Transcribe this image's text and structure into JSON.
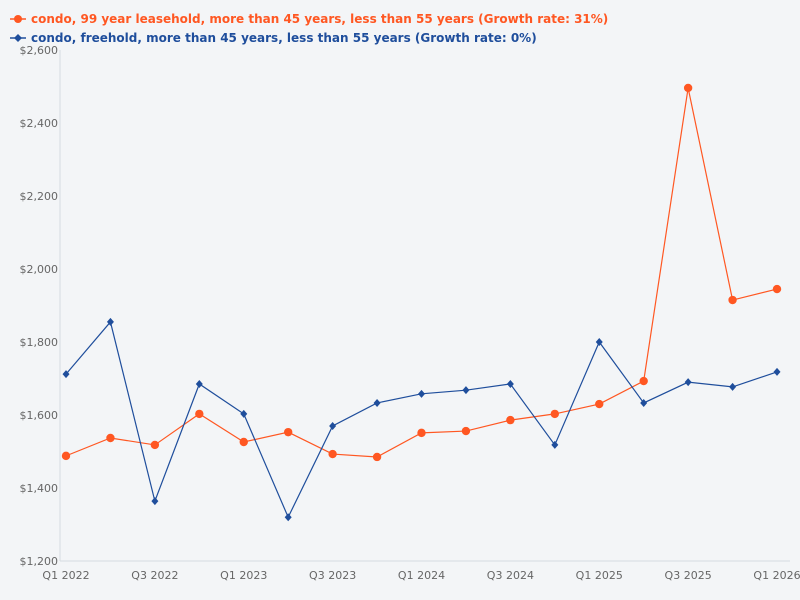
{
  "chart_data": {
    "type": "line",
    "title": "",
    "xlabel": "",
    "ylabel": "",
    "ylim": [
      1200,
      2600
    ],
    "yticks": [
      "$1,200",
      "$1,400",
      "$1,600",
      "$1,800",
      "$2,000",
      "$2,200",
      "$2,400",
      "$2,600"
    ],
    "ytick_values": [
      1200,
      1400,
      1600,
      1800,
      2000,
      2200,
      2400,
      2600
    ],
    "categories": [
      "Q1 2022",
      "Q2 2022",
      "Q3 2022",
      "Q4 2022",
      "Q1 2023",
      "Q2 2023",
      "Q3 2023",
      "Q4 2023",
      "Q1 2024",
      "Q2 2024",
      "Q3 2024",
      "Q4 2024",
      "Q1 2025",
      "Q2 2025",
      "Q3 2025",
      "Q4 2025",
      "Q1 2026"
    ],
    "xtick_labels": [
      "Q1 2022",
      "Q3 2022",
      "Q1 2023",
      "Q3 2023",
      "Q1 2024",
      "Q3 2024",
      "Q1 2025",
      "Q3 2025",
      "Q1 2026"
    ],
    "grid": false,
    "legend_position": "top-left",
    "series": [
      {
        "name": "condo, 99 year leasehold, more than 45 years, less than 55 years (Growth rate: 31%)",
        "color": "#ff5722",
        "marker": "circle",
        "values": [
          1488,
          1537,
          1518,
          1603,
          1526,
          1553,
          1493,
          1485,
          1551,
          1556,
          1586,
          1603,
          1630,
          1693,
          2496,
          1915,
          1945
        ]
      },
      {
        "name": "condo, freehold, more than 45 years, less than 55 years (Growth rate: 0%)",
        "color": "#1f4e9c",
        "marker": "diamond",
        "values": [
          1712,
          1855,
          1364,
          1685,
          1603,
          1320,
          1570,
          1633,
          1658,
          1668,
          1685,
          1518,
          1800,
          1633,
          1690,
          1677,
          1718
        ]
      }
    ]
  }
}
